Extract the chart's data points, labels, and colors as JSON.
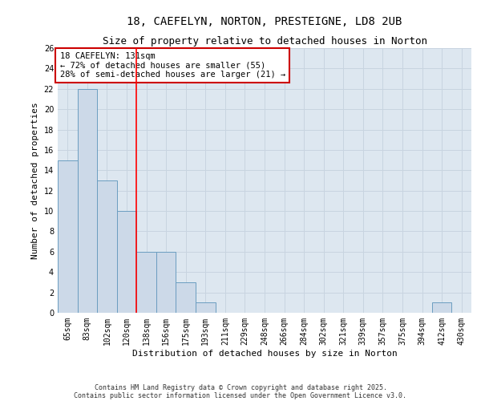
{
  "title": "18, CAEFELYN, NORTON, PRESTEIGNE, LD8 2UB",
  "subtitle": "Size of property relative to detached houses in Norton",
  "xlabel": "Distribution of detached houses by size in Norton",
  "ylabel": "Number of detached properties",
  "categories": [
    "65sqm",
    "83sqm",
    "102sqm",
    "120sqm",
    "138sqm",
    "156sqm",
    "175sqm",
    "193sqm",
    "211sqm",
    "229sqm",
    "248sqm",
    "266sqm",
    "284sqm",
    "302sqm",
    "321sqm",
    "339sqm",
    "357sqm",
    "375sqm",
    "394sqm",
    "412sqm",
    "430sqm"
  ],
  "values": [
    15,
    22,
    13,
    10,
    6,
    6,
    3,
    1,
    0,
    0,
    0,
    0,
    0,
    0,
    0,
    0,
    0,
    0,
    0,
    1,
    0
  ],
  "bar_color": "#ccd9e8",
  "bar_edge_color": "#6b9dc0",
  "red_line_index": 3.5,
  "annotation_text": "18 CAEFELYN: 131sqm\n← 72% of detached houses are smaller (55)\n28% of semi-detached houses are larger (21) →",
  "annotation_box_color": "#ffffff",
  "annotation_box_edge_color": "#cc0000",
  "ylim": [
    0,
    26
  ],
  "yticks": [
    0,
    2,
    4,
    6,
    8,
    10,
    12,
    14,
    16,
    18,
    20,
    22,
    24,
    26
  ],
  "grid_color": "#c8d4e0",
  "background_color": "#dde7f0",
  "footer_line1": "Contains HM Land Registry data © Crown copyright and database right 2025.",
  "footer_line2": "Contains public sector information licensed under the Open Government Licence v3.0.",
  "title_fontsize": 10,
  "subtitle_fontsize": 9,
  "axis_label_fontsize": 8,
  "tick_fontsize": 7,
  "annotation_fontsize": 7.5,
  "footer_fontsize": 6
}
